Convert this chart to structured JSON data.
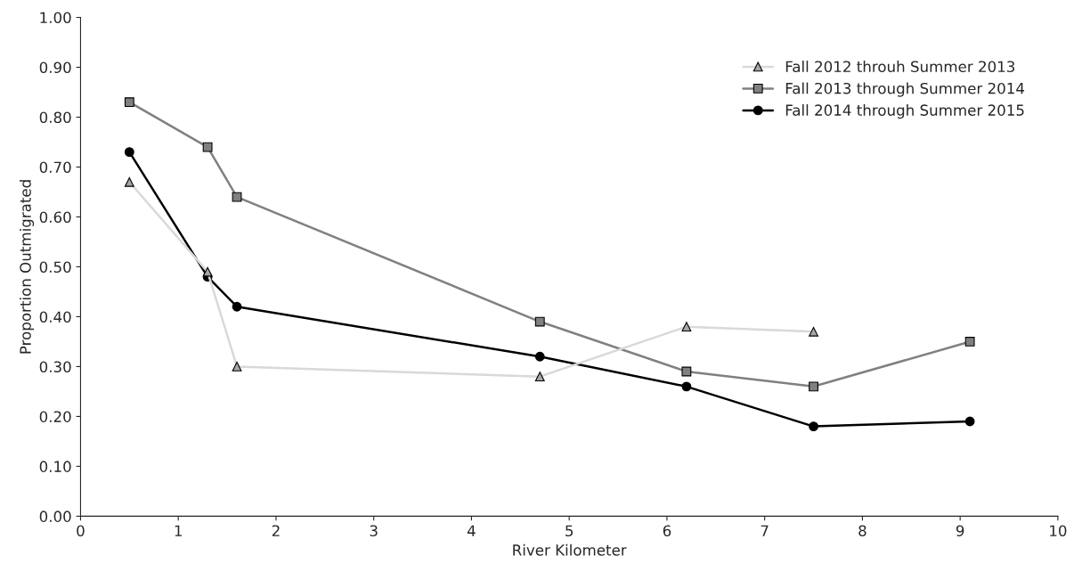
{
  "chart_data": {
    "type": "line",
    "xlabel": "River Kilometer",
    "ylabel": "Proportion Outmigrated",
    "xlim": [
      0,
      10
    ],
    "xticks": [
      0,
      1,
      2,
      3,
      4,
      5,
      6,
      7,
      8,
      9,
      10
    ],
    "ylim": [
      0,
      1
    ],
    "yticks": [
      {
        "value": 0,
        "label": "0.00"
      },
      {
        "value": 0.1,
        "label": "0.10"
      },
      {
        "value": 0.2,
        "label": "0.20"
      },
      {
        "value": 0.3,
        "label": "0.30"
      },
      {
        "value": 0.4,
        "label": "0.40"
      },
      {
        "value": 0.5,
        "label": "0.50"
      },
      {
        "value": 0.6,
        "label": "0.60"
      },
      {
        "value": 0.7,
        "label": "0.70"
      },
      {
        "value": 0.8,
        "label": "0.80"
      },
      {
        "value": 0.9,
        "label": "0.90"
      },
      {
        "value": 1.0,
        "label": "1.00"
      }
    ],
    "grid": false,
    "legend": "top right",
    "series": [
      {
        "name": "Fall 2012 throuh Summer 2013",
        "color": "#d9d9d9",
        "marker": "triangle",
        "x": [
          0.5,
          1.3,
          1.6,
          4.7,
          6.2,
          7.5
        ],
        "values": [
          0.67,
          0.49,
          0.3,
          0.28,
          0.38,
          0.37
        ]
      },
      {
        "name": "Fall 2013 through Summer 2014",
        "color": "#808080",
        "marker": "square",
        "x": [
          0.5,
          1.3,
          1.6,
          4.7,
          6.2,
          7.5,
          9.1
        ],
        "values": [
          0.83,
          0.74,
          0.64,
          0.39,
          0.29,
          0.26,
          0.35
        ]
      },
      {
        "name": "Fall 2014 through Summer 2015",
        "color": "#000000",
        "marker": "circle",
        "x": [
          0.5,
          1.3,
          1.6,
          4.7,
          6.2,
          7.5,
          9.1
        ],
        "values": [
          0.73,
          0.48,
          0.42,
          0.32,
          0.26,
          0.18,
          0.19
        ]
      }
    ]
  }
}
